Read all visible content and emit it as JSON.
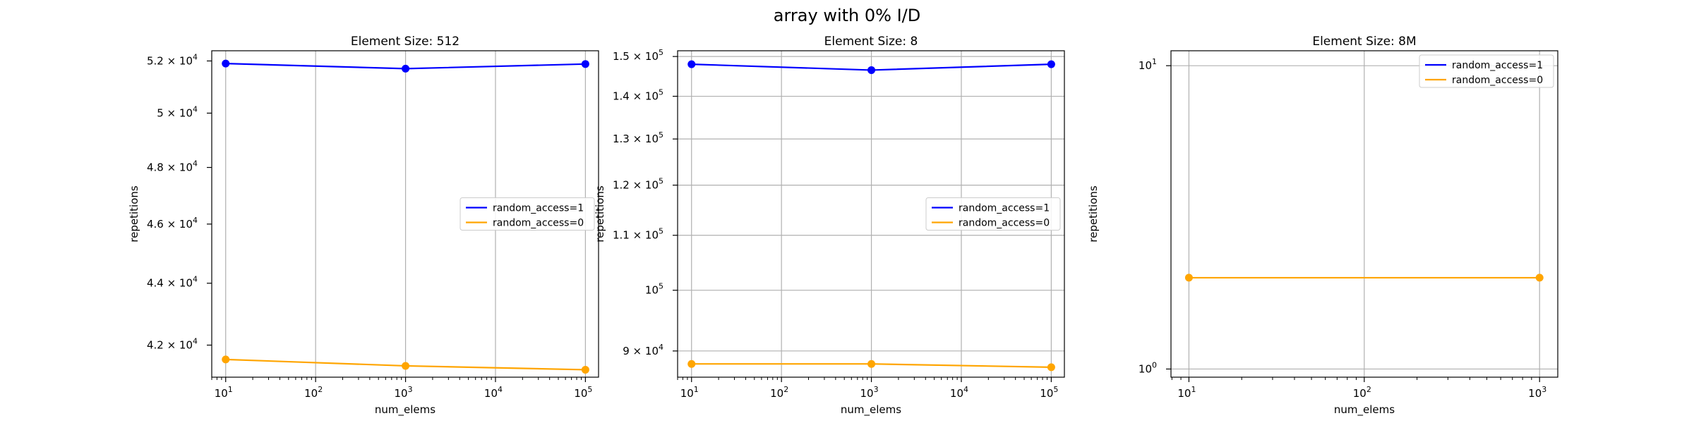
{
  "figure": {
    "title": "array with 0% I/D"
  },
  "chart_data": [
    {
      "type": "line",
      "title": "Element Size: 512",
      "xlabel": "num_elems",
      "ylabel": "repetitions",
      "xscale": "log",
      "yscale": "log",
      "xlim": [
        7,
        140000
      ],
      "ylim": [
        41000,
        52400
      ],
      "grid": "x-major",
      "legend_position": "center-right",
      "x_ticks": [
        {
          "value": 10,
          "base": "10",
          "exp": "1"
        },
        {
          "value": 100,
          "base": "10",
          "exp": "2"
        },
        {
          "value": 1000,
          "base": "10",
          "exp": "3"
        },
        {
          "value": 10000,
          "base": "10",
          "exp": "4"
        },
        {
          "value": 100000,
          "base": "10",
          "exp": "5"
        }
      ],
      "y_ticks": [
        {
          "value": 42000,
          "mant": "4.2 × 10",
          "exp": "4"
        },
        {
          "value": 44000,
          "mant": "4.4 × 10",
          "exp": "4"
        },
        {
          "value": 46000,
          "mant": "4.6 × 10",
          "exp": "4"
        },
        {
          "value": 48000,
          "mant": "4.8 × 10",
          "exp": "4"
        },
        {
          "value": 50000,
          "mant": "5 × 10",
          "exp": "4"
        },
        {
          "value": 52000,
          "mant": "5.2 × 10",
          "exp": "4"
        }
      ],
      "series": [
        {
          "name": "random_access=1",
          "color": "#0000ff",
          "x": [
            10,
            1000,
            100000
          ],
          "y": [
            51900,
            51700,
            51880
          ]
        },
        {
          "name": "random_access=0",
          "color": "#ffa500",
          "x": [
            10,
            1000,
            100000
          ],
          "y": [
            41550,
            41350,
            41230
          ]
        }
      ]
    },
    {
      "type": "line",
      "title": "Element Size: 8",
      "xlabel": "num_elems",
      "ylabel": "repetitions",
      "xscale": "log",
      "yscale": "log",
      "xlim": [
        7,
        140000
      ],
      "ylim": [
        86000,
        151500
      ],
      "grid": "x-major, y-major",
      "legend_position": "center-right",
      "x_ticks": [
        {
          "value": 10,
          "base": "10",
          "exp": "1"
        },
        {
          "value": 100,
          "base": "10",
          "exp": "2"
        },
        {
          "value": 1000,
          "base": "10",
          "exp": "3"
        },
        {
          "value": 10000,
          "base": "10",
          "exp": "4"
        },
        {
          "value": 100000,
          "base": "10",
          "exp": "5"
        }
      ],
      "y_ticks": [
        {
          "value": 90000,
          "mant": "9 × 10",
          "exp": "4"
        },
        {
          "value": 100000,
          "mant": "10",
          "exp": "5"
        },
        {
          "value": 110000,
          "mant": "1.1 × 10",
          "exp": "5"
        },
        {
          "value": 120000,
          "mant": "1.2 × 10",
          "exp": "5"
        },
        {
          "value": 130000,
          "mant": "1.3 × 10",
          "exp": "5"
        },
        {
          "value": 140000,
          "mant": "1.4 × 10",
          "exp": "5"
        },
        {
          "value": 150000,
          "mant": "1.5 × 10",
          "exp": "5"
        }
      ],
      "series": [
        {
          "name": "random_access=1",
          "color": "#0000ff",
          "x": [
            10,
            1000,
            100000
          ],
          "y": [
            148000,
            146500,
            148000
          ]
        },
        {
          "name": "random_access=0",
          "color": "#ffa500",
          "x": [
            10,
            1000,
            100000
          ],
          "y": [
            88000,
            88000,
            87500
          ]
        }
      ]
    },
    {
      "type": "line",
      "title": "Element Size: 8M",
      "xlabel": "num_elems",
      "ylabel": "repetitions",
      "xscale": "log",
      "yscale": "log",
      "xlim": [
        7.9,
        1270
      ],
      "ylim": [
        0.94,
        11.2
      ],
      "grid": "x-major, y-major",
      "legend_position": "upper-right",
      "x_ticks": [
        {
          "value": 10,
          "base": "10",
          "exp": "1"
        },
        {
          "value": 100,
          "base": "10",
          "exp": "2"
        },
        {
          "value": 1000,
          "base": "10",
          "exp": "3"
        }
      ],
      "y_ticks": [
        {
          "value": 1,
          "mant": "10",
          "exp": "0"
        },
        {
          "value": 10,
          "mant": "10",
          "exp": "1"
        }
      ],
      "series": [
        {
          "name": "random_access=1",
          "color": "#0000ff",
          "x": [],
          "y": []
        },
        {
          "name": "random_access=0",
          "color": "#ffa500",
          "x": [
            10,
            1000
          ],
          "y": [
            2,
            2
          ]
        }
      ]
    }
  ]
}
